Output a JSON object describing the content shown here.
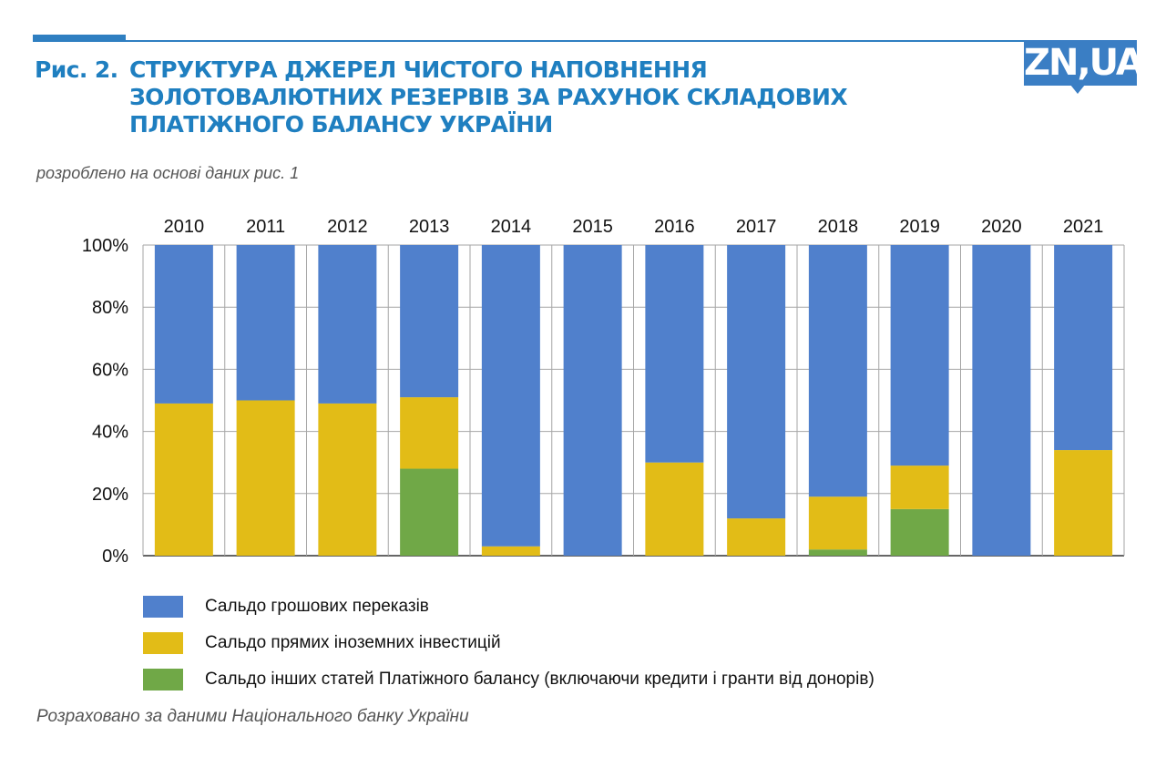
{
  "header": {
    "title_prefix": "Рис. 2.",
    "title_lines": [
      "СТРУКТУРА ДЖЕРЕЛ ЧИСТОГО НАПОВНЕННЯ",
      "ЗОЛОТОВАЛЮТНИХ РЕЗЕРВІВ ЗА РАХУНОК СКЛАДОВИХ",
      "ПЛАТІЖНОГО БАЛАНСУ УКРАЇНИ"
    ],
    "subtitle": "розроблено на основі даних рис. 1",
    "logo": "ZN,UA"
  },
  "footer": {
    "source": "Розраховано за даними Національного банку України"
  },
  "colors": {
    "accent": "#1f7fc0",
    "blue": "#5080cc",
    "yellow": "#e2bc17",
    "green": "#70a847",
    "grid": "#a6a6a6"
  },
  "chart_data": {
    "type": "bar",
    "stacked": true,
    "percent": true,
    "title": "СТРУКТУРА ДЖЕРЕЛ ЧИСТОГО НАПОВНЕННЯ ЗОЛОТОВАЛЮТНИХ РЕЗЕРВІВ ЗА РАХУНОК СКЛАДОВИХ ПЛАТІЖНОГО БАЛАНСУ УКРАЇНИ",
    "xlabel": "",
    "ylabel": "",
    "ylim": [
      0,
      100
    ],
    "yticks": [
      "0%",
      "20%",
      "40%",
      "60%",
      "80%",
      "100%"
    ],
    "x_axis_position": "top",
    "grid": true,
    "legend_position": "bottom",
    "categories": [
      "2010",
      "2011",
      "2012",
      "2013",
      "2014",
      "2015",
      "2016",
      "2017",
      "2018",
      "2019",
      "2020",
      "2021"
    ],
    "series": [
      {
        "name": "Сальдо інших статей Платіжного балансу (включаючи кредити і гранти від донорів)",
        "color": "#70a847",
        "values": [
          0,
          0,
          0,
          28,
          0,
          0,
          0,
          0,
          2,
          15,
          0,
          0
        ]
      },
      {
        "name": "Сальдо прямих іноземних інвестицій",
        "color": "#e2bc17",
        "values": [
          49,
          50,
          49,
          23,
          3,
          0,
          30,
          12,
          17,
          14,
          0,
          34
        ]
      },
      {
        "name": "Сальдо грошових переказів",
        "color": "#5080cc",
        "values": [
          51,
          50,
          51,
          49,
          97,
          100,
          70,
          88,
          81,
          71,
          100,
          66
        ]
      }
    ]
  }
}
